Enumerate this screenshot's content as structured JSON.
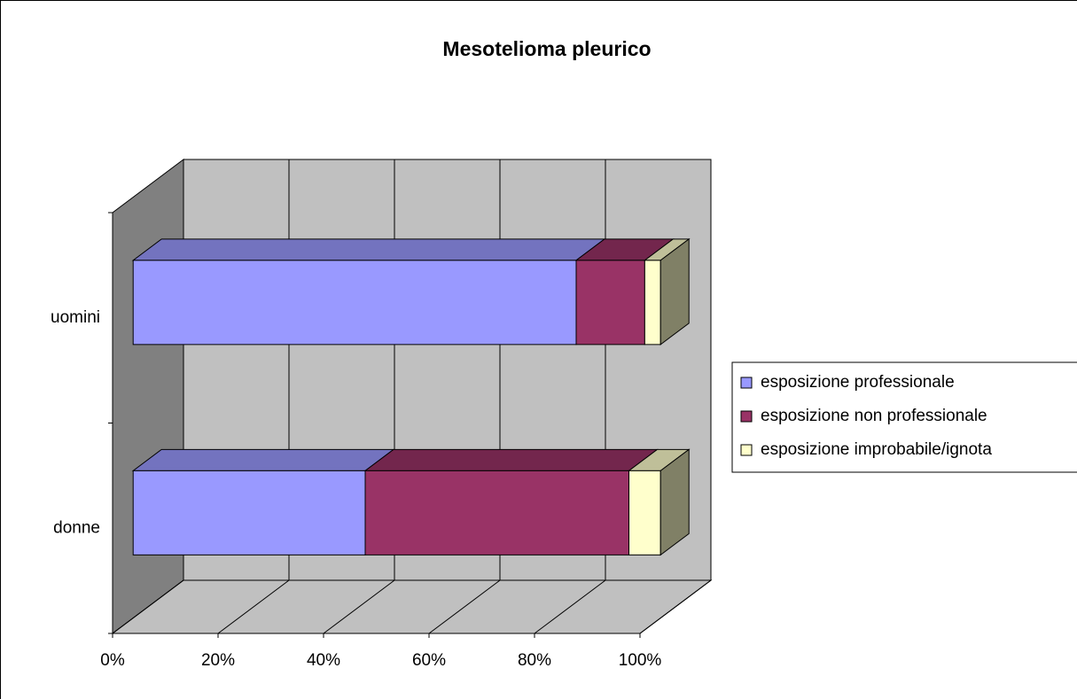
{
  "chart_data": {
    "type": "bar",
    "title": "Mesotelioma pleurico",
    "categories": [
      "donne",
      "uomini"
    ],
    "series": [
      {
        "name": "esposizione professionale",
        "color": "#9999ff",
        "values": [
          44,
          84
        ]
      },
      {
        "name": "esposizione non professionale",
        "color": "#993366",
        "values": [
          50,
          13
        ]
      },
      {
        "name": "esposizione improbabile/ignota",
        "color": "#ffffcc",
        "values": [
          6,
          3
        ]
      }
    ],
    "xlim": [
      0,
      100
    ],
    "xticks": [
      {
        "value": 0,
        "label": "0%"
      },
      {
        "value": 20,
        "label": "20%"
      },
      {
        "value": 40,
        "label": "40%"
      },
      {
        "value": 60,
        "label": "60%"
      },
      {
        "value": 80,
        "label": "80%"
      },
      {
        "value": 100,
        "label": "100%"
      }
    ],
    "grid": true,
    "stacked": true,
    "legend": "right"
  }
}
